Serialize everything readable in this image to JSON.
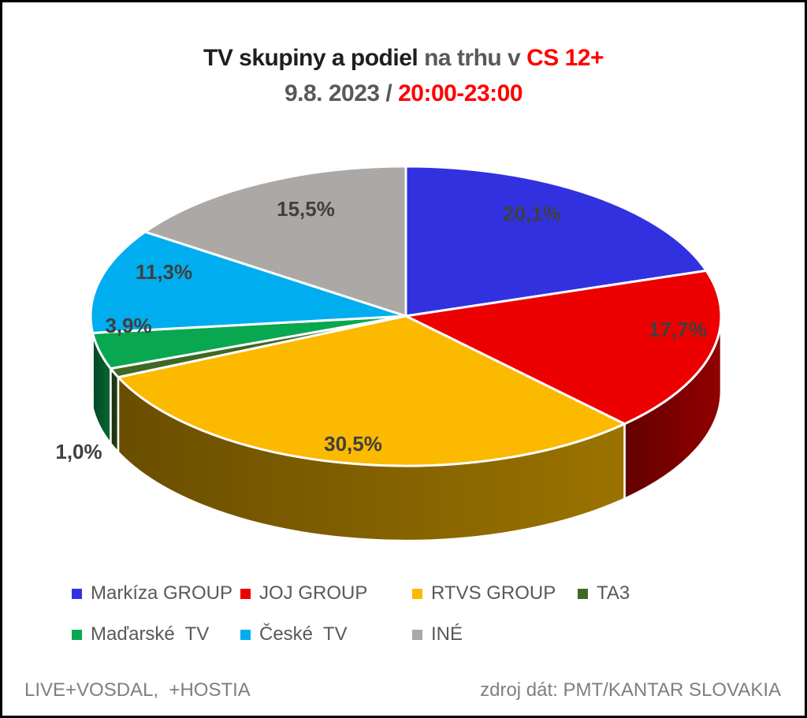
{
  "title": {
    "line1_black": "TV skupiny a podiel ",
    "line1_gray": "na trhu v ",
    "line1_red": "CS 12+",
    "line2_gray": "9.8. 2023 / ",
    "line2_red": "20:00-23:00"
  },
  "footer": {
    "left": "LIVE+VOSDAL,  +HOSTIA",
    "right": "zdroj dát: PMT/KANTAR SLOVAKIA"
  },
  "colors": {
    "background": "#ffffff",
    "frame_border": "#000000",
    "title_black": "#1f1f1f",
    "title_gray": "#595959",
    "title_red": "#ff0000",
    "slice_label": "#3f3f3f",
    "legend_text": "#595959",
    "footer_text": "#7f7f7f",
    "slice_separator": "#ffffff"
  },
  "chart_data": {
    "type": "pie",
    "effect": "3d",
    "title": "TV skupiny a podiel na trhu v CS 12+ — 9.8. 2023 / 20:00-23:00",
    "start_angle": "top",
    "direction": "clockwise",
    "legend_position": "bottom",
    "value_format": "percent-comma-decimal",
    "slices": [
      {
        "label": "Markíza GROUP",
        "value": 20.1,
        "display": "20,1%",
        "color": "#3231e0"
      },
      {
        "label": "JOJ GROUP",
        "value": 17.7,
        "display": "17,7%",
        "color": "#ec0000"
      },
      {
        "label": "RTVS GROUP",
        "value": 30.5,
        "display": "30,5%",
        "color": "#fbb900"
      },
      {
        "label": "TA3",
        "value": 1.0,
        "display": "1,0%",
        "color": "#3e6823",
        "label_outside": true
      },
      {
        "label": "Maďarské  TV",
        "value": 3.9,
        "display": "3,9%",
        "color": "#0aa751"
      },
      {
        "label": "České  TV",
        "value": 11.3,
        "display": "11,3%",
        "color": "#00aeef"
      },
      {
        "label": "INÉ",
        "value": 15.5,
        "display": "15,5%",
        "color": "#aba8a5"
      }
    ],
    "legend_rows": [
      [
        0,
        1,
        2,
        3
      ],
      [
        4,
        5,
        6
      ]
    ]
  }
}
